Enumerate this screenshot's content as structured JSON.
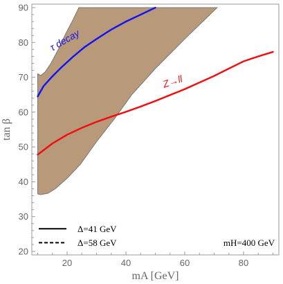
{
  "chart_data": {
    "type": "line",
    "xlabel": "mA [GeV]",
    "ylabel": "tan β",
    "xlim": [
      8,
      92
    ],
    "ylim": [
      19,
      91
    ],
    "xticks": [
      20,
      40,
      60,
      80
    ],
    "yticks": [
      20,
      30,
      40,
      50,
      60,
      70,
      80,
      90
    ],
    "grid": false,
    "legend_position": "bottom-left",
    "region": {
      "color": "#b89a7a",
      "edge_color": "#777777",
      "boundary": [
        [
          10.0,
          71.0
        ],
        [
          11.0,
          70.5
        ],
        [
          12.5,
          71.5
        ],
        [
          14.5,
          74.0
        ],
        [
          17.0,
          78.0
        ],
        [
          19.5,
          82.5
        ],
        [
          22.0,
          86.5
        ],
        [
          24.0,
          90.0
        ],
        [
          71.0,
          90.0
        ],
        [
          60.0,
          81.0
        ],
        [
          50.0,
          72.5
        ],
        [
          42.0,
          65.0
        ],
        [
          36.0,
          58.0
        ],
        [
          30.0,
          51.5
        ],
        [
          24.5,
          45.0
        ],
        [
          20.0,
          41.0
        ],
        [
          16.0,
          38.0
        ],
        [
          13.5,
          36.7
        ],
        [
          11.0,
          36.3
        ],
        [
          10.0,
          36.5
        ]
      ]
    },
    "series": [
      {
        "name": "τ decay",
        "color": "#1515ee",
        "x": [
          10,
          12,
          15,
          18,
          22,
          26,
          30,
          35,
          40,
          45,
          50
        ],
        "y": [
          64.5,
          67.5,
          70.3,
          72.8,
          75.9,
          78.7,
          81.0,
          83.7,
          86.0,
          88.0,
          90.0
        ]
      },
      {
        "name": "Z→ll",
        "color": "#ee1111",
        "x": [
          10,
          15,
          20,
          25,
          30,
          35,
          40,
          45,
          50,
          55,
          60,
          65,
          70,
          75,
          80,
          85,
          90
        ],
        "y": [
          47.8,
          51.0,
          53.5,
          55.5,
          57.2,
          58.7,
          60.1,
          61.6,
          63.2,
          64.9,
          66.6,
          68.5,
          70.4,
          72.5,
          74.6,
          76.0,
          77.3
        ]
      }
    ],
    "legend": [
      {
        "label": "Δ=41 GeV",
        "style": "solid"
      },
      {
        "label": "Δ=58 GeV",
        "style": "dashed"
      }
    ],
    "annotation": "mH=400 GeV"
  }
}
